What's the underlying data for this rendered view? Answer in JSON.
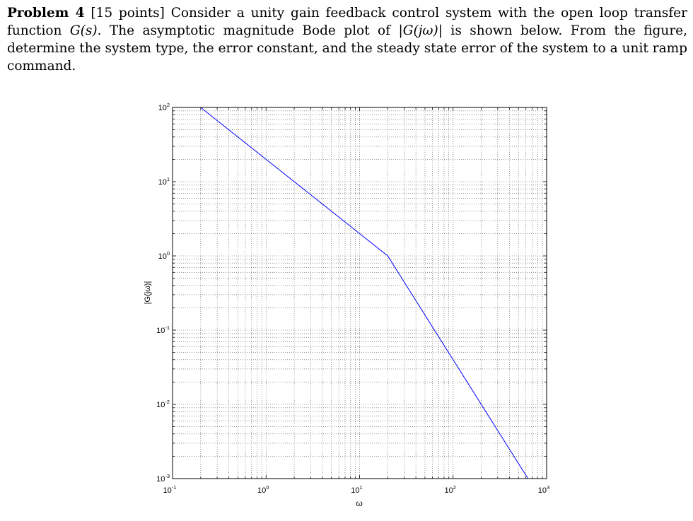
{
  "problem": {
    "heading": "Problem 4",
    "points": "[15 points]",
    "text_1": "Consider a unity gain feedback control system with the open loop transfer function ",
    "g_s": "G(s)",
    "text_2": ". The asymptotic magnitude Bode plot of ",
    "g_jw": "|G(jω)|",
    "text_3": " is shown below. From the figure, determine the system type, the error constant, and the steady state error of the system to a unit ramp command."
  },
  "chart_data": {
    "type": "line",
    "xscale": "log",
    "yscale": "log",
    "xlim": [
      0.1,
      1000
    ],
    "ylim": [
      0.001,
      100
    ],
    "grid": true,
    "grid_style": "dotted",
    "xlabel": "ω",
    "ylabel": "|G(jω)|",
    "x_ticks": [
      {
        "value": 0.1,
        "base": "10",
        "exp": "-1"
      },
      {
        "value": 1,
        "base": "10",
        "exp": "0"
      },
      {
        "value": 10,
        "base": "10",
        "exp": "1"
      },
      {
        "value": 100,
        "base": "10",
        "exp": "2"
      },
      {
        "value": 1000,
        "base": "10",
        "exp": "3"
      }
    ],
    "y_ticks": [
      {
        "value": 100,
        "base": "10",
        "exp": "2"
      },
      {
        "value": 10,
        "base": "10",
        "exp": "1"
      },
      {
        "value": 1,
        "base": "10",
        "exp": "0"
      },
      {
        "value": 0.1,
        "base": "10",
        "exp": "-1"
      },
      {
        "value": 0.01,
        "base": "10",
        "exp": "-2"
      },
      {
        "value": 0.001,
        "base": "10",
        "exp": "-3"
      }
    ],
    "series": [
      {
        "color": "#0000ff",
        "x": [
          0.2,
          20,
          632
        ],
        "y": [
          100,
          1,
          0.001
        ]
      }
    ]
  }
}
